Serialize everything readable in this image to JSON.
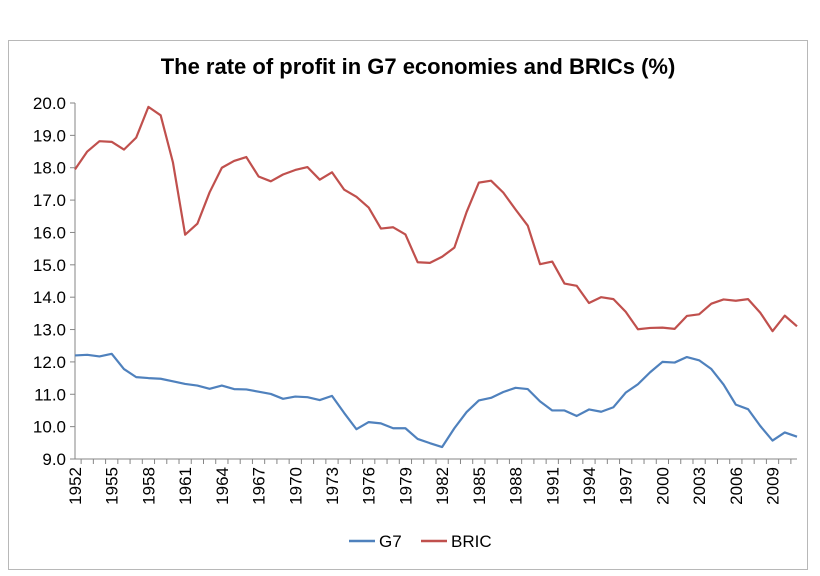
{
  "chart_data": {
    "type": "line",
    "title": "The rate of profit in G7 economies and BRICs (%)",
    "xlabel": "",
    "ylabel": "",
    "ylim": [
      9.0,
      20.0
    ],
    "y_ticks": [
      "9.0",
      "10.0",
      "11.0",
      "12.0",
      "13.0",
      "14.0",
      "15.0",
      "16.0",
      "17.0",
      "18.0",
      "19.0",
      "20.0"
    ],
    "x_tick_labels": [
      "1952",
      "1955",
      "1958",
      "1961",
      "1964",
      "1967",
      "1970",
      "1973",
      "1976",
      "1979",
      "1982",
      "1985",
      "1988",
      "1991",
      "1994",
      "1997",
      "2000",
      "2003",
      "2006",
      "2009"
    ],
    "x": [
      1952,
      1953,
      1954,
      1955,
      1956,
      1957,
      1958,
      1959,
      1960,
      1961,
      1962,
      1963,
      1964,
      1965,
      1966,
      1967,
      1968,
      1969,
      1970,
      1971,
      1972,
      1973,
      1974,
      1975,
      1976,
      1977,
      1978,
      1979,
      1980,
      1981,
      1982,
      1983,
      1984,
      1985,
      1986,
      1987,
      1988,
      1989,
      1990,
      1991,
      1992,
      1993,
      1994,
      1995,
      1996,
      1997,
      1998,
      1999,
      2000,
      2001,
      2002,
      2003,
      2004,
      2005,
      2006,
      2007,
      2008,
      2009,
      2010,
      2011
    ],
    "grid": false,
    "legend_position": "bottom",
    "series": [
      {
        "name": "G7",
        "color": "#4f81bd",
        "values": [
          12.2,
          12.22,
          12.17,
          12.25,
          11.78,
          11.53,
          11.5,
          11.48,
          11.4,
          11.32,
          11.27,
          11.17,
          11.27,
          11.16,
          11.15,
          11.08,
          11.01,
          10.86,
          10.93,
          10.91,
          10.82,
          10.95,
          10.42,
          9.92,
          10.14,
          10.1,
          9.95,
          9.95,
          9.62,
          9.49,
          9.37,
          9.95,
          10.45,
          10.81,
          10.89,
          11.07,
          11.2,
          11.16,
          10.78,
          10.5,
          10.5,
          10.33,
          10.53,
          10.46,
          10.6,
          11.05,
          11.31,
          11.68,
          12.0,
          11.98,
          12.15,
          12.05,
          11.78,
          11.3,
          10.68,
          10.54,
          10.02,
          9.57,
          9.82,
          9.69
        ]
      },
      {
        "name": "BRIC",
        "color": "#c0504d",
        "values": [
          17.95,
          18.5,
          18.82,
          18.8,
          18.56,
          18.93,
          19.88,
          19.62,
          18.17,
          15.93,
          16.27,
          17.24,
          18.0,
          18.21,
          18.33,
          17.73,
          17.58,
          17.79,
          17.93,
          18.02,
          17.63,
          17.86,
          17.32,
          17.1,
          16.77,
          16.12,
          16.16,
          15.94,
          15.08,
          15.06,
          15.25,
          15.53,
          16.63,
          17.54,
          17.6,
          17.23,
          16.71,
          16.21,
          15.02,
          15.1,
          14.42,
          14.35,
          13.82,
          14.0,
          13.94,
          13.55,
          13.01,
          13.05,
          13.06,
          13.02,
          13.42,
          13.47,
          13.8,
          13.93,
          13.89,
          13.94,
          13.52,
          12.95,
          13.43,
          13.1
        ]
      }
    ]
  }
}
